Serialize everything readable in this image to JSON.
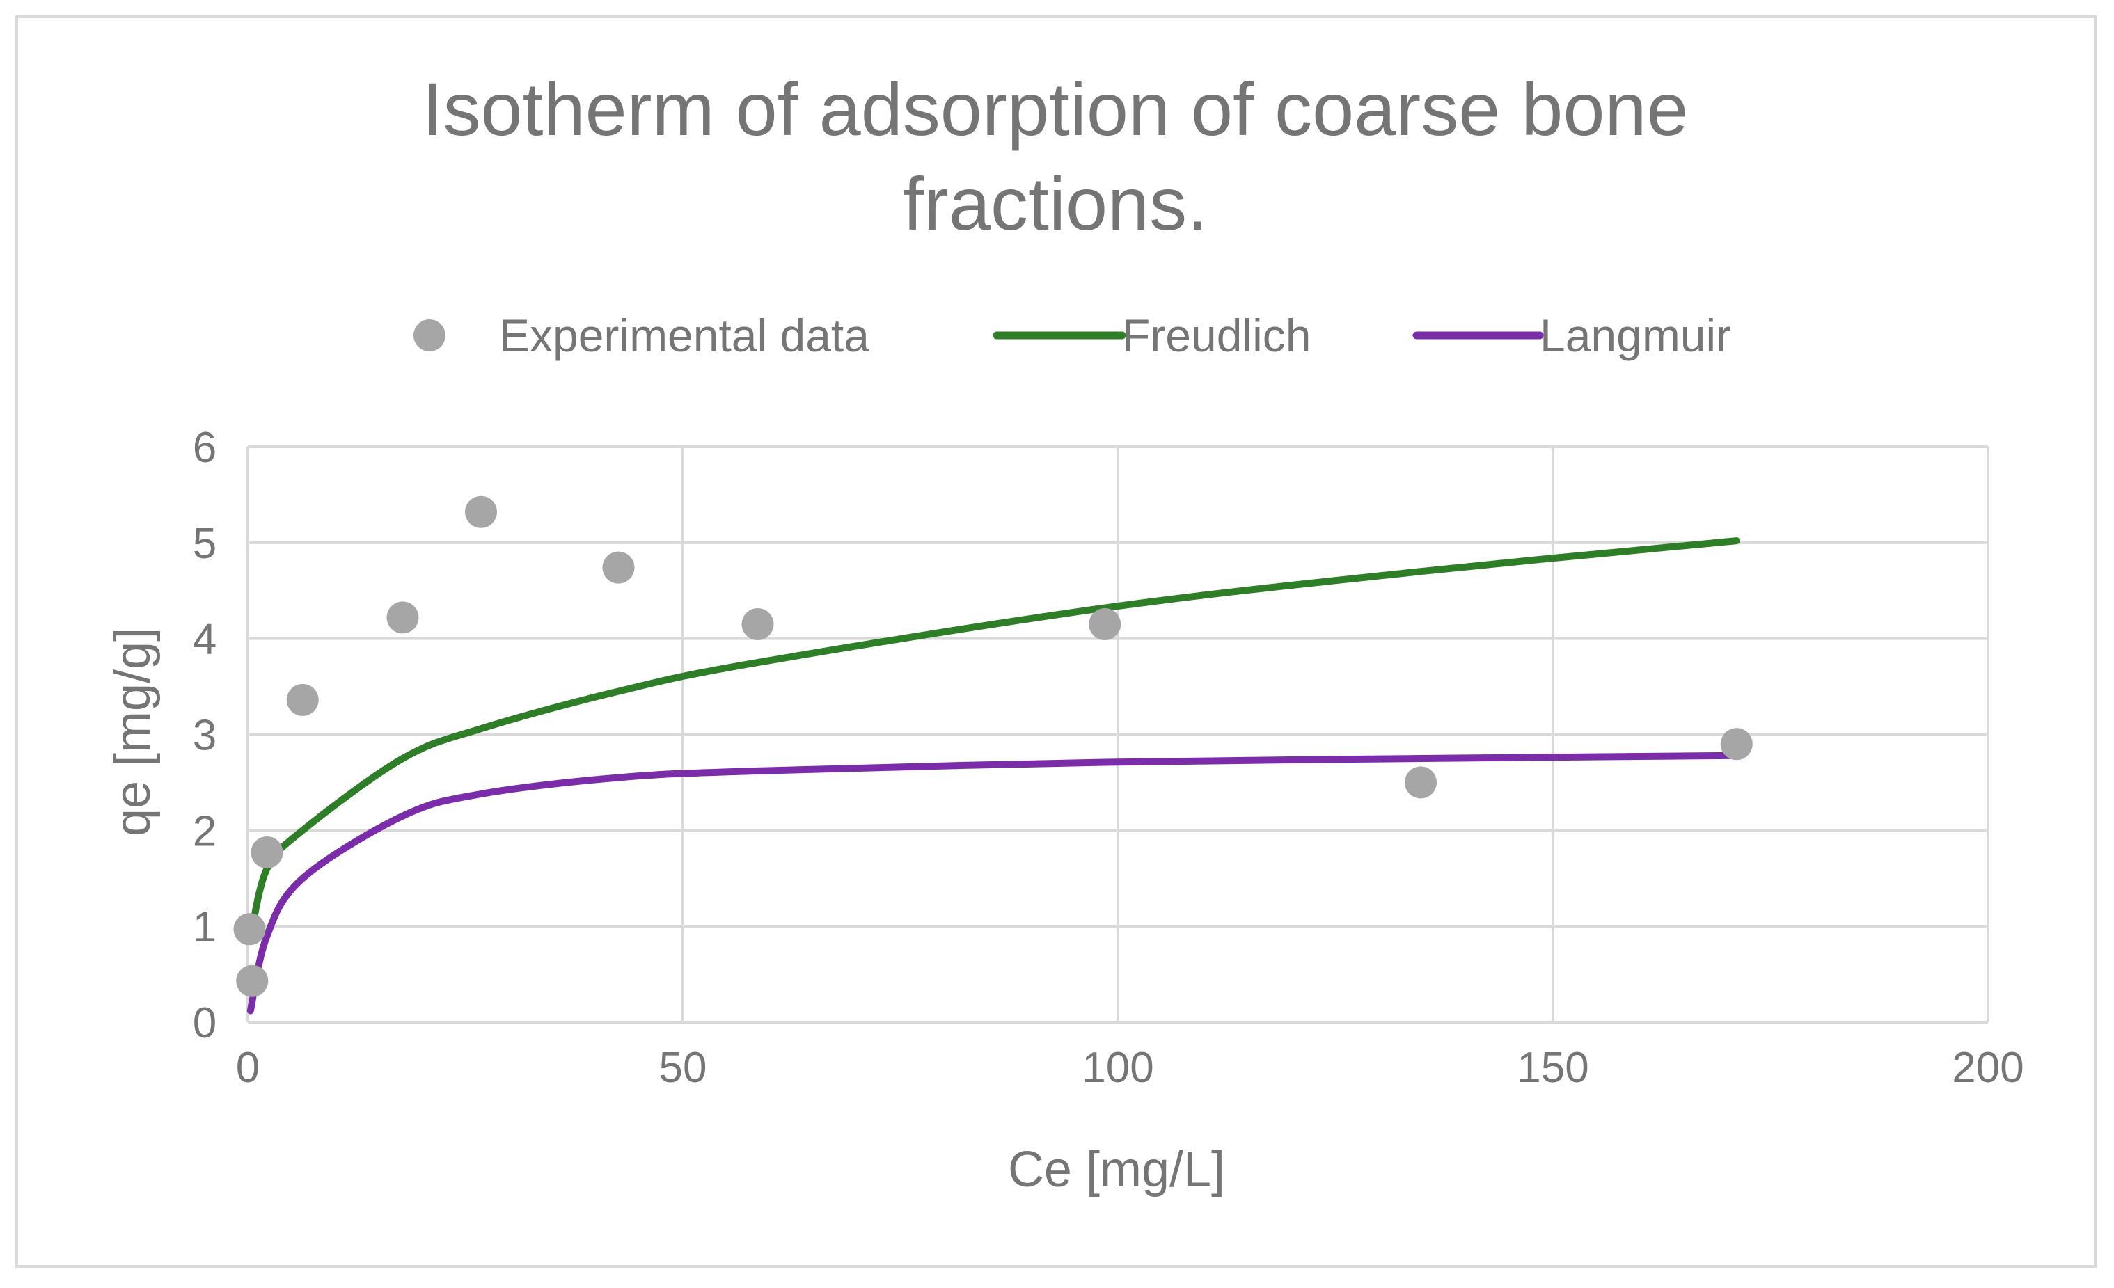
{
  "chart_data": {
    "type": "scatter",
    "title_lines": [
      "Isotherm of adsorption of coarse bone",
      "fractions."
    ],
    "xlabel": "Ce [mg/L]",
    "ylabel": "qe [mg/g]",
    "xlim": [
      0,
      200
    ],
    "ylim": [
      0,
      6
    ],
    "x_ticks": [
      0,
      50,
      100,
      150,
      200
    ],
    "y_ticks": [
      0,
      1,
      2,
      3,
      4,
      5,
      6
    ],
    "grid": true,
    "legend_position": "top",
    "series": [
      {
        "name": "Experimental data",
        "kind": "markers",
        "color": "#a6a6a6",
        "points": [
          [
            0.2,
            0.97
          ],
          [
            0.5,
            0.43
          ],
          [
            2.2,
            1.77
          ],
          [
            6.3,
            3.36
          ],
          [
            17.8,
            4.22
          ],
          [
            26.8,
            5.32
          ],
          [
            42.6,
            4.74
          ],
          [
            58.6,
            4.15
          ],
          [
            98.5,
            4.15
          ],
          [
            134.8,
            2.5
          ],
          [
            171.1,
            2.9
          ]
        ]
      },
      {
        "name": "Freudlich",
        "kind": "line",
        "color": "#2e7d27",
        "points": [
          [
            0.3,
            0.88
          ],
          [
            2.2,
            1.6
          ],
          [
            6.3,
            2.0
          ],
          [
            17.8,
            2.75
          ],
          [
            26.8,
            3.06
          ],
          [
            42.6,
            3.45
          ],
          [
            58.6,
            3.75
          ],
          [
            98.5,
            4.32
          ],
          [
            134.8,
            4.7
          ],
          [
            171.1,
            5.02
          ]
        ]
      },
      {
        "name": "Langmuir",
        "kind": "line",
        "color": "#7b2ca8",
        "points": [
          [
            0.3,
            0.12
          ],
          [
            2.2,
            0.9
          ],
          [
            6.3,
            1.5
          ],
          [
            17.8,
            2.15
          ],
          [
            26.8,
            2.38
          ],
          [
            42.6,
            2.55
          ],
          [
            58.6,
            2.62
          ],
          [
            98.5,
            2.71
          ],
          [
            134.8,
            2.75
          ],
          [
            171.1,
            2.78
          ]
        ]
      }
    ]
  }
}
